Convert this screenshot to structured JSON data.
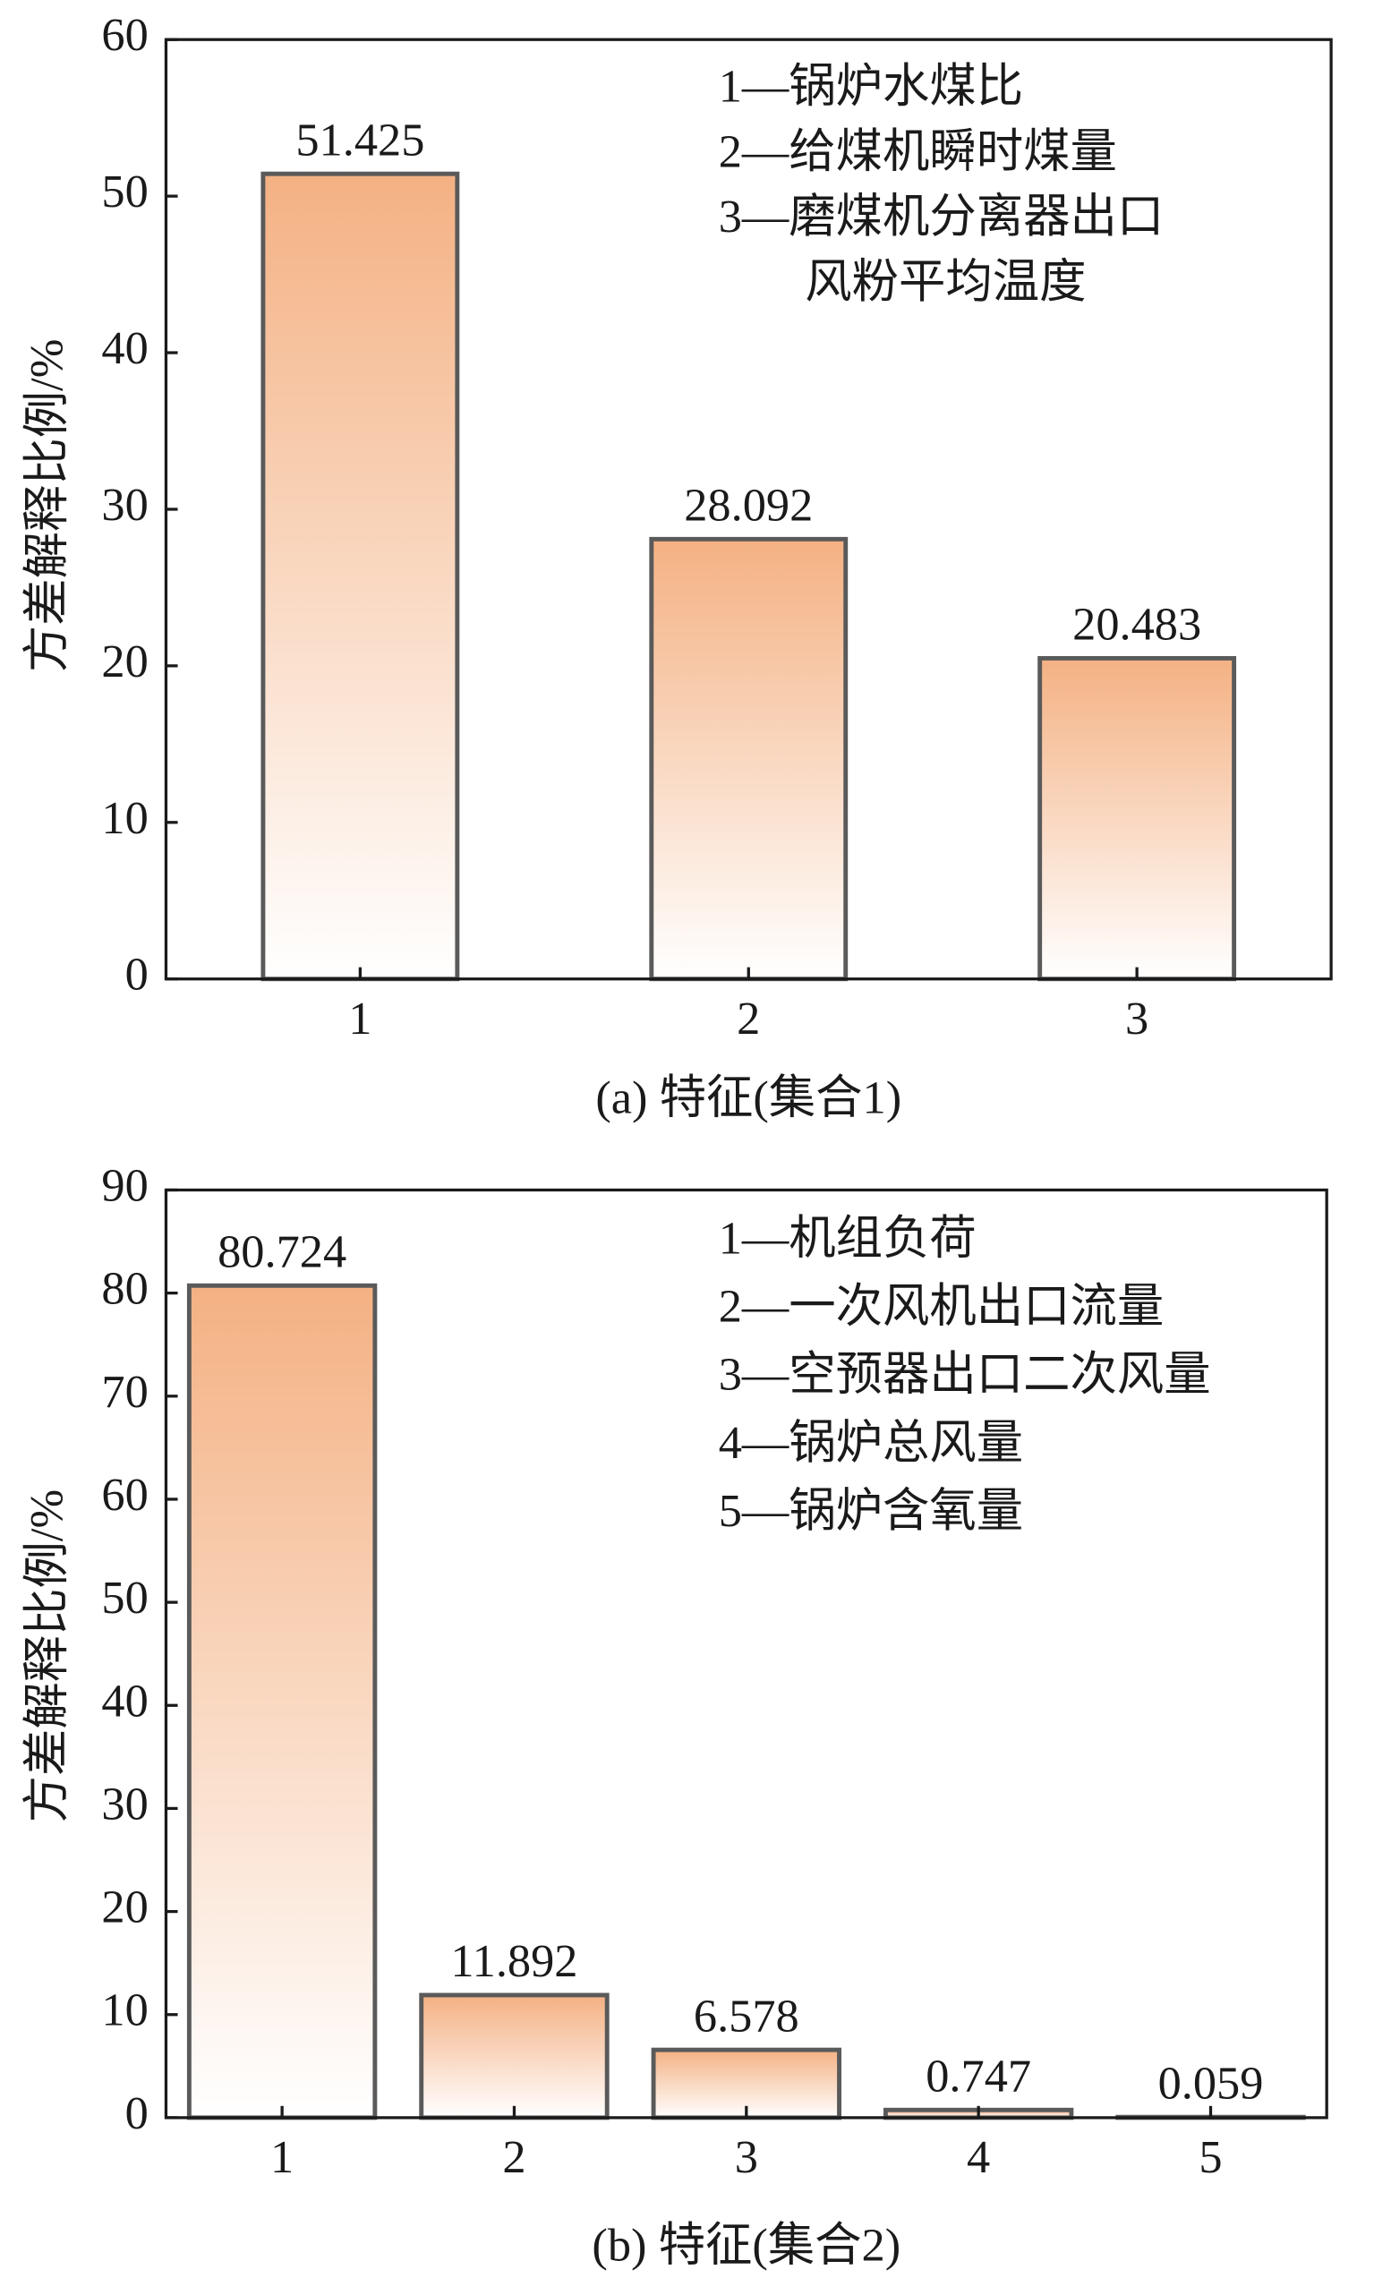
{
  "chart_data": [
    {
      "type": "bar",
      "xlabel": "(a) 特征(集合1)",
      "ylabel": "方差解释比例/%",
      "categories": [
        "1",
        "2",
        "3"
      ],
      "values": [
        51.425,
        28.092,
        20.483
      ],
      "color": "#f4b183",
      "ylim": [
        0,
        60
      ],
      "yticks": [
        0,
        10,
        20,
        30,
        40,
        50,
        60
      ],
      "annotations": [
        "1—锅炉水煤比",
        "2—给煤机瞬时煤量",
        "3—磨煤机分离器出口",
        "风粉平均温度"
      ]
    },
    {
      "type": "bar",
      "xlabel": "(b) 特征(集合2)",
      "ylabel": "方差解释比例/%",
      "categories": [
        "1",
        "2",
        "3",
        "4",
        "5"
      ],
      "values": [
        80.724,
        11.892,
        6.578,
        0.747,
        0.059
      ],
      "color": "#f4b183",
      "ylim": [
        0,
        90
      ],
      "yticks": [
        0,
        10,
        20,
        30,
        40,
        50,
        60,
        70,
        80,
        90
      ],
      "annotations": [
        "1—机组负荷",
        "2—一次风机出口流量",
        "3—空预器出口二次风量",
        "4—锅炉总风量",
        "5—锅炉含氧量"
      ]
    }
  ]
}
